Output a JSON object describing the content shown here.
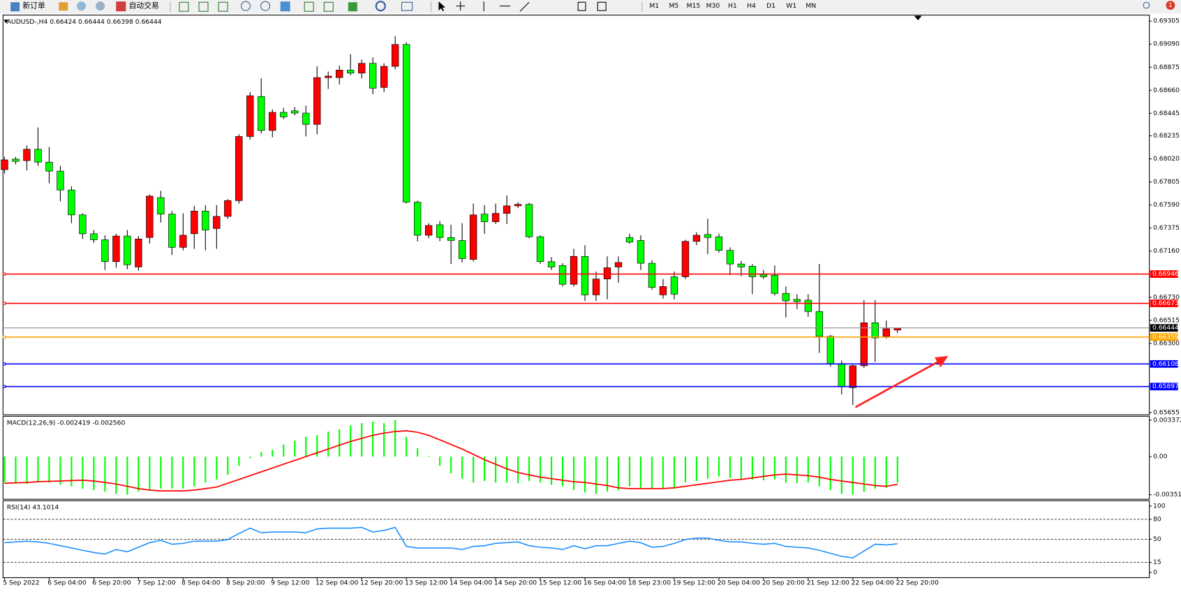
{
  "toolbar": {
    "new_order": "新订单",
    "auto_trading": "自动交易",
    "timeframes": [
      "M1",
      "M5",
      "M15",
      "M30",
      "H1",
      "H4",
      "D1",
      "W1",
      "MN"
    ],
    "badge": "1"
  },
  "chart_data": [
    {
      "type": "candlestick",
      "title": "AUDUSD-,H4 0.66424 0.66444 0.66398 0.66444",
      "categories": [
        "5 Sep 2022",
        null,
        null,
        null,
        "6 Sep 04:00",
        null,
        null,
        null,
        "6 Sep 20:00",
        null,
        null,
        null,
        "7 Sep 12:00",
        null,
        null,
        null,
        "8 Sep 04:00",
        null,
        null,
        null,
        "8 Sep 20:00",
        null,
        null,
        null,
        "9 Sep 12:00",
        null,
        null,
        null,
        "12 Sep 04:00",
        null,
        null,
        null,
        "12 Sep 20:00",
        null,
        null,
        null,
        "13 Sep 12:00",
        null,
        null,
        null,
        "14 Sep 04:00",
        null,
        null,
        null,
        "14 Sep 20:00",
        null,
        null,
        null,
        "15 Sep 12:00",
        null,
        null,
        null,
        "16 Sep 04:00",
        null,
        null,
        null,
        "18 Sep 23:00",
        null,
        null,
        null,
        "19 Sep 12:00",
        null,
        null,
        null,
        "20 Sep 04:00",
        null,
        null,
        null,
        "20 Sep 20:00",
        null,
        null,
        null,
        "21 Sep 12:00",
        null,
        null,
        null,
        "22 Sep 04:00",
        null,
        null,
        null,
        "22 Sep 20:00"
      ],
      "open": [
        0.6792,
        0.68018,
        0.68004,
        0.6811,
        0.6799,
        0.67906,
        0.6773,
        0.67498,
        0.67322,
        0.67266,
        0.67062,
        0.67301,
        0.67012,
        0.67287,
        0.67659,
        0.67505,
        0.67195,
        0.67322,
        0.67533,
        0.67371,
        0.67484,
        0.67631,
        0.68229,
        0.68602,
        0.68285,
        0.68454,
        0.68468,
        0.68447,
        0.68342,
        0.68778,
        0.68778,
        0.68848,
        0.6882,
        0.68911,
        0.68686,
        0.68883,
        0.69087,
        0.67617,
        0.67308,
        0.67406,
        0.67287,
        0.67259,
        0.67083,
        0.67505,
        0.67434,
        0.67512,
        0.67582,
        0.67596,
        0.67294,
        0.67062,
        0.67026,
        0.66851,
        0.67111,
        0.66752,
        0.669,
        0.67012,
        0.67287,
        0.67259,
        0.67047,
        0.66752,
        0.66921,
        0.66921,
        0.67251,
        0.67315,
        0.67294,
        0.67167,
        0.6704,
        0.67019,
        0.66942,
        0.66935,
        0.66766,
        0.6671,
        0.66703,
        0.66597,
        0.66365,
        0.66112,
        0.65887,
        0.66091,
        0.66492,
        0.66365,
        0.66424
      ],
      "high": [
        0.68039,
        0.68039,
        0.68145,
        0.68313,
        0.68131,
        0.67955,
        0.67765,
        0.67512,
        0.67357,
        0.67308,
        0.67322,
        0.67357,
        0.67301,
        0.67688,
        0.67723,
        0.67533,
        0.67512,
        0.67582,
        0.67589,
        0.67589,
        0.67645,
        0.6825,
        0.68644,
        0.68771,
        0.68482,
        0.68496,
        0.68503,
        0.68517,
        0.68883,
        0.68834,
        0.6889,
        0.68996,
        0.68946,
        0.68967,
        0.68911,
        0.69164,
        0.69108,
        0.67631,
        0.6742,
        0.67441,
        0.67406,
        0.6742,
        0.67603,
        0.67589,
        0.67603,
        0.6768,
        0.67617,
        0.6761,
        0.67308,
        0.67104,
        0.67047,
        0.67181,
        0.67216,
        0.6697,
        0.67111,
        0.67111,
        0.67322,
        0.67308,
        0.67076,
        0.669,
        0.6697,
        0.67266,
        0.67336,
        0.67462,
        0.67322,
        0.67195,
        0.67069,
        0.6704,
        0.66984,
        0.67026,
        0.6683,
        0.66759,
        0.66759,
        0.6704,
        0.66379,
        0.6614,
        0.66105,
        0.66703,
        0.66703,
        0.66513,
        0.66444
      ],
      "low": [
        0.67884,
        0.67969,
        0.67913,
        0.67955,
        0.67793,
        0.67624,
        0.6742,
        0.67273,
        0.67237,
        0.66984,
        0.67005,
        0.66991,
        0.66977,
        0.6723,
        0.67427,
        0.67125,
        0.67167,
        0.67181,
        0.67167,
        0.67181,
        0.67462,
        0.67603,
        0.68201,
        0.68257,
        0.68222,
        0.68391,
        0.68426,
        0.68229,
        0.6825,
        0.68672,
        0.68714,
        0.68799,
        0.68771,
        0.68623,
        0.68644,
        0.68855,
        0.67603,
        0.67251,
        0.6728,
        0.67251,
        0.6704,
        0.67054,
        0.67062,
        0.67322,
        0.67413,
        0.67413,
        0.67561,
        0.6728,
        0.6704,
        0.66984,
        0.6683,
        0.6683,
        0.66696,
        0.66696,
        0.6671,
        0.66865,
        0.6723,
        0.66984,
        0.66801,
        0.66717,
        0.6671,
        0.669,
        0.67216,
        0.67132,
        0.67146,
        0.66935,
        0.66928,
        0.66759,
        0.669,
        0.66745,
        0.66541,
        0.66619,
        0.66548,
        0.66211,
        0.66084,
        0.65824,
        0.65725,
        0.6607,
        0.66126,
        0.66344,
        0.66398
      ],
      "close": [
        0.68011,
        0.67997,
        0.6811,
        0.6799,
        0.67906,
        0.6773,
        0.67498,
        0.67322,
        0.67266,
        0.67062,
        0.67301,
        0.67033,
        0.67273,
        0.67673,
        0.67505,
        0.67195,
        0.67308,
        0.67533,
        0.67357,
        0.67484,
        0.67631,
        0.68229,
        0.68609,
        0.68285,
        0.68454,
        0.68412,
        0.68447,
        0.68342,
        0.68778,
        0.68792,
        0.68848,
        0.6882,
        0.68911,
        0.68679,
        0.68883,
        0.69087,
        0.67617,
        0.67308,
        0.67399,
        0.67287,
        0.67259,
        0.6709,
        0.67498,
        0.67434,
        0.67512,
        0.67582,
        0.67596,
        0.67294,
        0.67062,
        0.67012,
        0.66851,
        0.67111,
        0.66752,
        0.669,
        0.67005,
        0.67054,
        0.67244,
        0.67047,
        0.66822,
        0.6683,
        0.66759,
        0.67251,
        0.67308,
        0.67287,
        0.67167,
        0.6704,
        0.67012,
        0.66921,
        0.66921,
        0.66766,
        0.66696,
        0.66689,
        0.66597,
        0.66365,
        0.66112,
        0.65894,
        0.66091,
        0.66492,
        0.66351,
        0.66436,
        0.66444
      ],
      "up_color": "#ff0000",
      "down_color": "#00ff00",
      "ylim": [
        0.65634,
        0.69361
      ],
      "yticks": [
        0.69305,
        {
          "value": 0.6909,
          "label": "0.69090"
        },
        0.68875,
        {
          "value": 0.6866,
          "label": "0.68660"
        },
        0.68445,
        0.68235,
        {
          "value": 0.6802,
          "label": "0.68020"
        },
        0.67805,
        {
          "value": 0.6759,
          "label": "0.67590"
        },
        0.67375,
        {
          "value": 0.6716,
          "label": "0.67160"
        },
        {
          "value": 0.6673,
          "label": "0.66730"
        },
        0.66515,
        {
          "value": 0.663,
          "label": "0.66300"
        },
        0.65655
      ],
      "hlines": [
        {
          "value": 0.66946,
          "color": "#ff0000"
        },
        {
          "value": 0.66673,
          "color": "#ff0000"
        },
        {
          "value": 0.66359,
          "color": "#ffa500"
        },
        {
          "value": 0.66108,
          "color": "#0000ff"
        },
        {
          "value": 0.65897,
          "color": "#0000ff"
        }
      ],
      "bid": 0.66444
    },
    {
      "type": "macd",
      "title": "MACD(12,26,9) -0.002419 -0.002560",
      "values": [
        -0.00239,
        -0.00239,
        -0.002531,
        -0.00239,
        -0.00239,
        -0.002601,
        -0.002742,
        -0.002953,
        -0.003093,
        -0.003234,
        -0.003445,
        -0.003515,
        -0.003234,
        -0.003093,
        -0.002953,
        -0.002953,
        -0.002953,
        -0.002742,
        -0.00239,
        -0.002109,
        -0.001687,
        -0.000844,
        -0.000141,
        0.000422,
        0.000633,
        0.001125,
        0.001476,
        0.001828,
        0.001968,
        0.00232,
        0.002531,
        0.002882,
        0.003093,
        0.003234,
        0.003093,
        0.003374,
        0.001828,
        0.000773,
        7e-05,
        -0.000844,
        -0.001547,
        -0.002039,
        -0.00239,
        -0.00225,
        -0.00239,
        -0.00239,
        -0.002461,
        -0.00225,
        -0.00239,
        -0.002601,
        -0.002742,
        -0.003093,
        -0.003304,
        -0.003445,
        -0.003234,
        -0.003093,
        -0.002742,
        -0.002882,
        -0.002953,
        -0.002953,
        -0.002953,
        -0.00239,
        -0.00225,
        -0.002039,
        -0.001828,
        -0.001968,
        -0.002039,
        -0.002109,
        -0.002179,
        -0.002109,
        -0.00239,
        -0.002461,
        -0.00239,
        -0.002742,
        -0.003093,
        -0.003445,
        -0.003515,
        -0.003234,
        -0.002953,
        -0.002882,
        -0.002419
      ],
      "signal": [
        -0.002461,
        -0.002425,
        -0.00239,
        -0.00232,
        -0.002285,
        -0.00225,
        -0.002214,
        -0.002179,
        -0.00225,
        -0.00239,
        -0.002531,
        -0.002742,
        -0.002953,
        -0.003093,
        -0.003164,
        -0.003164,
        -0.003164,
        -0.003093,
        -0.002953,
        -0.002812,
        -0.002461,
        -0.002109,
        -0.001758,
        -0.001406,
        -0.001055,
        -0.000703,
        -0.000352,
        0,
        0.000352,
        0.000703,
        0.001055,
        0.001406,
        0.001687,
        0.001968,
        0.002179,
        0.00232,
        0.00239,
        0.00225,
        0.001968,
        0.001547,
        0.001125,
        0.000703,
        0.000211,
        -0.000281,
        -0.000703,
        -0.001125,
        -0.001476,
        -0.001687,
        -0.001898,
        -0.002039,
        -0.002179,
        -0.00232,
        -0.00239,
        -0.002531,
        -0.002671,
        -0.002882,
        -0.002953,
        -0.002953,
        -0.002953,
        -0.002953,
        -0.002882,
        -0.002742,
        -0.002601,
        -0.002461,
        -0.00232,
        -0.002179,
        -0.002109,
        -0.001968,
        -0.001828,
        -0.001687,
        -0.001617,
        -0.001687,
        -0.001758,
        -0.001898,
        -0.002109,
        -0.00225,
        -0.00239,
        -0.002531,
        -0.002671,
        -0.002742,
        -0.00256
      ],
      "color": "#00ff00",
      "signal_color": "#ff0000",
      "ylim": [
        -0.003938,
        0.003727
      ],
      "yticks": [
        0.003372,
        {
          "value": 0,
          "label": "0.00"
        },
        -0.003519
      ]
    },
    {
      "type": "line",
      "title": "RSI(14) 43.1014",
      "values": [
        44.8,
        46,
        47.1,
        46,
        43.7,
        40.2,
        36.8,
        33.3,
        29.9,
        27.6,
        34.5,
        31,
        37.9,
        44.8,
        48.3,
        42.5,
        43.7,
        47.1,
        47.1,
        47.1,
        49.4,
        58.6,
        66.7,
        59.8,
        60.9,
        60.9,
        60.9,
        59.8,
        65.5,
        66.7,
        66.7,
        66.7,
        67.8,
        60.9,
        63.2,
        67.8,
        39.1,
        36.8,
        36.8,
        36.8,
        36.8,
        34.5,
        39.1,
        40.2,
        43.7,
        44.8,
        46,
        40.2,
        37.9,
        36.8,
        34.5,
        40.2,
        35.6,
        40.2,
        40.2,
        43.7,
        47.1,
        44.8,
        37.9,
        39.1,
        43.7,
        49.4,
        51.7,
        51.7,
        48.3,
        46,
        46,
        43.7,
        42.5,
        43.7,
        39.1,
        37.9,
        36.8,
        33.3,
        28.7,
        24.1,
        21.8,
        32.2,
        42.5,
        41.4,
        43.1014
      ],
      "color": "#1e90ff",
      "ylim": [
        -8,
        108
      ],
      "yticks": [
        100,
        80,
        50,
        15,
        0
      ],
      "levels": [
        80,
        50,
        15
      ]
    }
  ]
}
